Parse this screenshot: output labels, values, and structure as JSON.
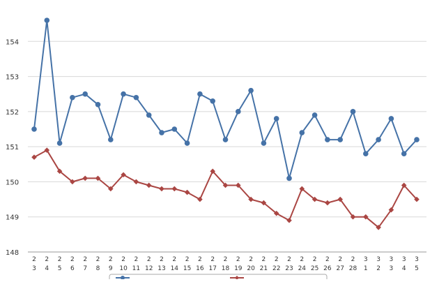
{
  "chart_data": {
    "type": "line",
    "ylim": [
      148,
      155
    ],
    "yticks": [
      148,
      149,
      150,
      151,
      152,
      153,
      154
    ],
    "grid": true,
    "legend": "bottom",
    "categories": [
      [
        "2",
        "3"
      ],
      [
        "2",
        "4"
      ],
      [
        "2",
        "5"
      ],
      [
        "2",
        "6"
      ],
      [
        "2",
        "7"
      ],
      [
        "2",
        "8"
      ],
      [
        "2",
        "9"
      ],
      [
        "2",
        "10"
      ],
      [
        "2",
        "11"
      ],
      [
        "2",
        "12"
      ],
      [
        "2",
        "13"
      ],
      [
        "2",
        "14"
      ],
      [
        "2",
        "15"
      ],
      [
        "2",
        "16"
      ],
      [
        "2",
        "17"
      ],
      [
        "2",
        "18"
      ],
      [
        "2",
        "19"
      ],
      [
        "2",
        "20"
      ],
      [
        "2",
        "21"
      ],
      [
        "2",
        "22"
      ],
      [
        "2",
        "23"
      ],
      [
        "2",
        "24"
      ],
      [
        "2",
        "25"
      ],
      [
        "2",
        "26"
      ],
      [
        "2",
        "27"
      ],
      [
        "2",
        "28"
      ],
      [
        "3",
        "1"
      ],
      [
        "3",
        "2"
      ],
      [
        "3",
        "3"
      ],
      [
        "3",
        "4"
      ],
      [
        "3",
        "5"
      ]
    ],
    "series": [
      {
        "color": "#4572a7",
        "marker": "circle",
        "values": [
          151.5,
          154.6,
          151.1,
          152.4,
          152.5,
          152.2,
          151.2,
          152.5,
          152.4,
          151.9,
          151.4,
          151.5,
          151.1,
          152.5,
          152.3,
          151.2,
          152.0,
          152.6,
          151.1,
          151.8,
          150.1,
          151.4,
          151.9,
          151.2,
          151.2,
          152.0,
          150.8,
          151.2,
          151.8,
          150.8,
          151.2
        ]
      },
      {
        "color": "#aa4643",
        "marker": "diamond",
        "values": [
          150.7,
          150.9,
          150.3,
          150.0,
          150.1,
          150.1,
          149.8,
          150.2,
          150.0,
          149.9,
          149.8,
          149.8,
          149.7,
          149.5,
          150.3,
          149.9,
          149.9,
          149.5,
          149.4,
          149.1,
          148.9,
          149.8,
          149.5,
          149.4,
          149.5,
          149.0,
          149.0,
          148.7,
          149.2,
          149.9,
          149.5
        ]
      }
    ]
  }
}
